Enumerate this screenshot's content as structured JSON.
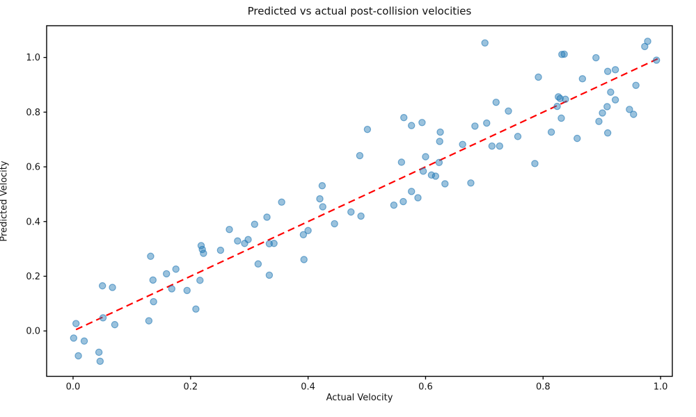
{
  "figure": {
    "background": "#ffffff"
  },
  "chart_data": {
    "type": "scatter",
    "title": "Predicted vs actual post-collision velocities",
    "xlabel": "Actual Velocity",
    "ylabel": "Predicted Velocity",
    "x_ticks": [
      0.0,
      0.2,
      0.4,
      0.6,
      0.8,
      1.0
    ],
    "y_ticks": [
      0.0,
      0.2,
      0.4,
      0.6,
      0.8,
      1.0
    ],
    "xlim": [
      -0.045,
      1.02
    ],
    "ylim": [
      -0.166,
      1.116
    ],
    "grid": false,
    "legend": null,
    "point_color": "#1f77b4",
    "point_opacity": 0.5,
    "identity_line": {
      "color": "#ff0000",
      "style": "dashed",
      "x": [
        0.005,
        0.995
      ],
      "y": [
        0.005,
        0.995
      ]
    },
    "series": [
      {
        "name": "predicted-vs-actual",
        "points": [
          [
            0.005,
            0.027
          ],
          [
            0.001,
            -0.026
          ],
          [
            0.019,
            -0.037
          ],
          [
            0.009,
            -0.091
          ],
          [
            0.044,
            -0.078
          ],
          [
            0.046,
            -0.111
          ],
          [
            0.05,
            0.165
          ],
          [
            0.067,
            0.159
          ],
          [
            0.051,
            0.048
          ],
          [
            0.071,
            0.023
          ],
          [
            0.132,
            0.273
          ],
          [
            0.136,
            0.186
          ],
          [
            0.159,
            0.209
          ],
          [
            0.175,
            0.226
          ],
          [
            0.168,
            0.154
          ],
          [
            0.137,
            0.107
          ],
          [
            0.129,
            0.037
          ],
          [
            0.194,
            0.148
          ],
          [
            0.216,
            0.185
          ],
          [
            0.209,
            0.08
          ],
          [
            0.218,
            0.312
          ],
          [
            0.22,
            0.298
          ],
          [
            0.222,
            0.284
          ],
          [
            0.251,
            0.295
          ],
          [
            0.266,
            0.371
          ],
          [
            0.28,
            0.329
          ],
          [
            0.292,
            0.32
          ],
          [
            0.298,
            0.334
          ],
          [
            0.309,
            0.39
          ],
          [
            0.315,
            0.245
          ],
          [
            0.334,
            0.204
          ],
          [
            0.33,
            0.416
          ],
          [
            0.334,
            0.319
          ],
          [
            0.342,
            0.32
          ],
          [
            0.355,
            0.471
          ],
          [
            0.392,
            0.352
          ],
          [
            0.4,
            0.367
          ],
          [
            0.393,
            0.261
          ],
          [
            0.424,
            0.531
          ],
          [
            0.42,
            0.483
          ],
          [
            0.425,
            0.454
          ],
          [
            0.445,
            0.392
          ],
          [
            0.473,
            0.435
          ],
          [
            0.49,
            0.42
          ],
          [
            0.488,
            0.641
          ],
          [
            0.501,
            0.737
          ],
          [
            0.546,
            0.46
          ],
          [
            0.562,
            0.473
          ],
          [
            0.559,
            0.617
          ],
          [
            0.563,
            0.78
          ],
          [
            0.576,
            0.751
          ],
          [
            0.576,
            0.51
          ],
          [
            0.587,
            0.487
          ],
          [
            0.594,
            0.762
          ],
          [
            0.596,
            0.584
          ],
          [
            0.6,
            0.637
          ],
          [
            0.61,
            0.57
          ],
          [
            0.617,
            0.566
          ],
          [
            0.623,
            0.616
          ],
          [
            0.625,
            0.727
          ],
          [
            0.624,
            0.693
          ],
          [
            0.633,
            0.538
          ],
          [
            0.663,
            0.682
          ],
          [
            0.677,
            0.541
          ],
          [
            0.684,
            0.749
          ],
          [
            0.701,
            1.053
          ],
          [
            0.704,
            0.76
          ],
          [
            0.713,
            0.676
          ],
          [
            0.726,
            0.676
          ],
          [
            0.72,
            0.836
          ],
          [
            0.741,
            0.804
          ],
          [
            0.757,
            0.711
          ],
          [
            0.786,
            0.612
          ],
          [
            0.792,
            0.928
          ],
          [
            0.814,
            0.727
          ],
          [
            0.824,
            0.821
          ],
          [
            0.826,
            0.856
          ],
          [
            0.829,
            0.85
          ],
          [
            0.838,
            0.847
          ],
          [
            0.831,
            0.778
          ],
          [
            0.832,
            1.011
          ],
          [
            0.836,
            1.012
          ],
          [
            0.858,
            0.704
          ],
          [
            0.867,
            0.922
          ],
          [
            0.89,
            0.999
          ],
          [
            0.895,
            0.766
          ],
          [
            0.901,
            0.797
          ],
          [
            0.909,
            0.82
          ],
          [
            0.91,
            0.724
          ],
          [
            0.91,
            0.949
          ],
          [
            0.923,
            0.955
          ],
          [
            0.915,
            0.873
          ],
          [
            0.923,
            0.845
          ],
          [
            0.947,
            0.81
          ],
          [
            0.954,
            0.792
          ],
          [
            0.958,
            0.898
          ],
          [
            0.973,
            1.04
          ],
          [
            0.978,
            1.059
          ],
          [
            0.993,
            0.99
          ]
        ]
      }
    ]
  }
}
